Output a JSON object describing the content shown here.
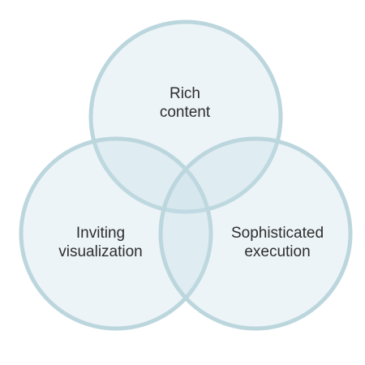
{
  "diagram": {
    "type": "venn",
    "colors": {
      "fill": "#e3eff3",
      "stroke": "#bcd6de",
      "text": "#2e2e2e"
    },
    "sets": [
      {
        "line1": "Rich",
        "line2": "content"
      },
      {
        "line1": "Inviting",
        "line2": "visualization"
      },
      {
        "line1": "Sophisticated",
        "line2": "execution"
      }
    ]
  }
}
